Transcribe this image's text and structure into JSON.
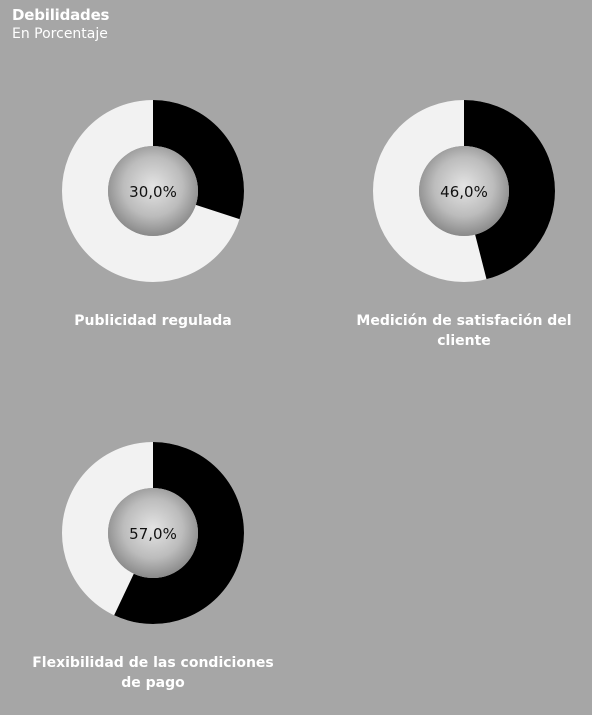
{
  "header": {
    "title": "Debilidades",
    "subtitle": "En Porcentaje"
  },
  "chart_data": [
    {
      "type": "pie",
      "label": "Publicidad regulada",
      "value_label": "30,0%",
      "value": 30.0,
      "unit": "%",
      "colors": {
        "value": "#000000",
        "remainder": "#f2f2f2"
      }
    },
    {
      "type": "pie",
      "label": "Medición de satisfación del cliente",
      "value_label": "46,0%",
      "value": 46.0,
      "unit": "%",
      "colors": {
        "value": "#000000",
        "remainder": "#f2f2f2"
      }
    },
    {
      "type": "pie",
      "label": "Flexibilidad de las condiciones de pago",
      "value_label": "57,0%",
      "value": 57.0,
      "unit": "%",
      "colors": {
        "value": "#000000",
        "remainder": "#f2f2f2"
      }
    }
  ]
}
